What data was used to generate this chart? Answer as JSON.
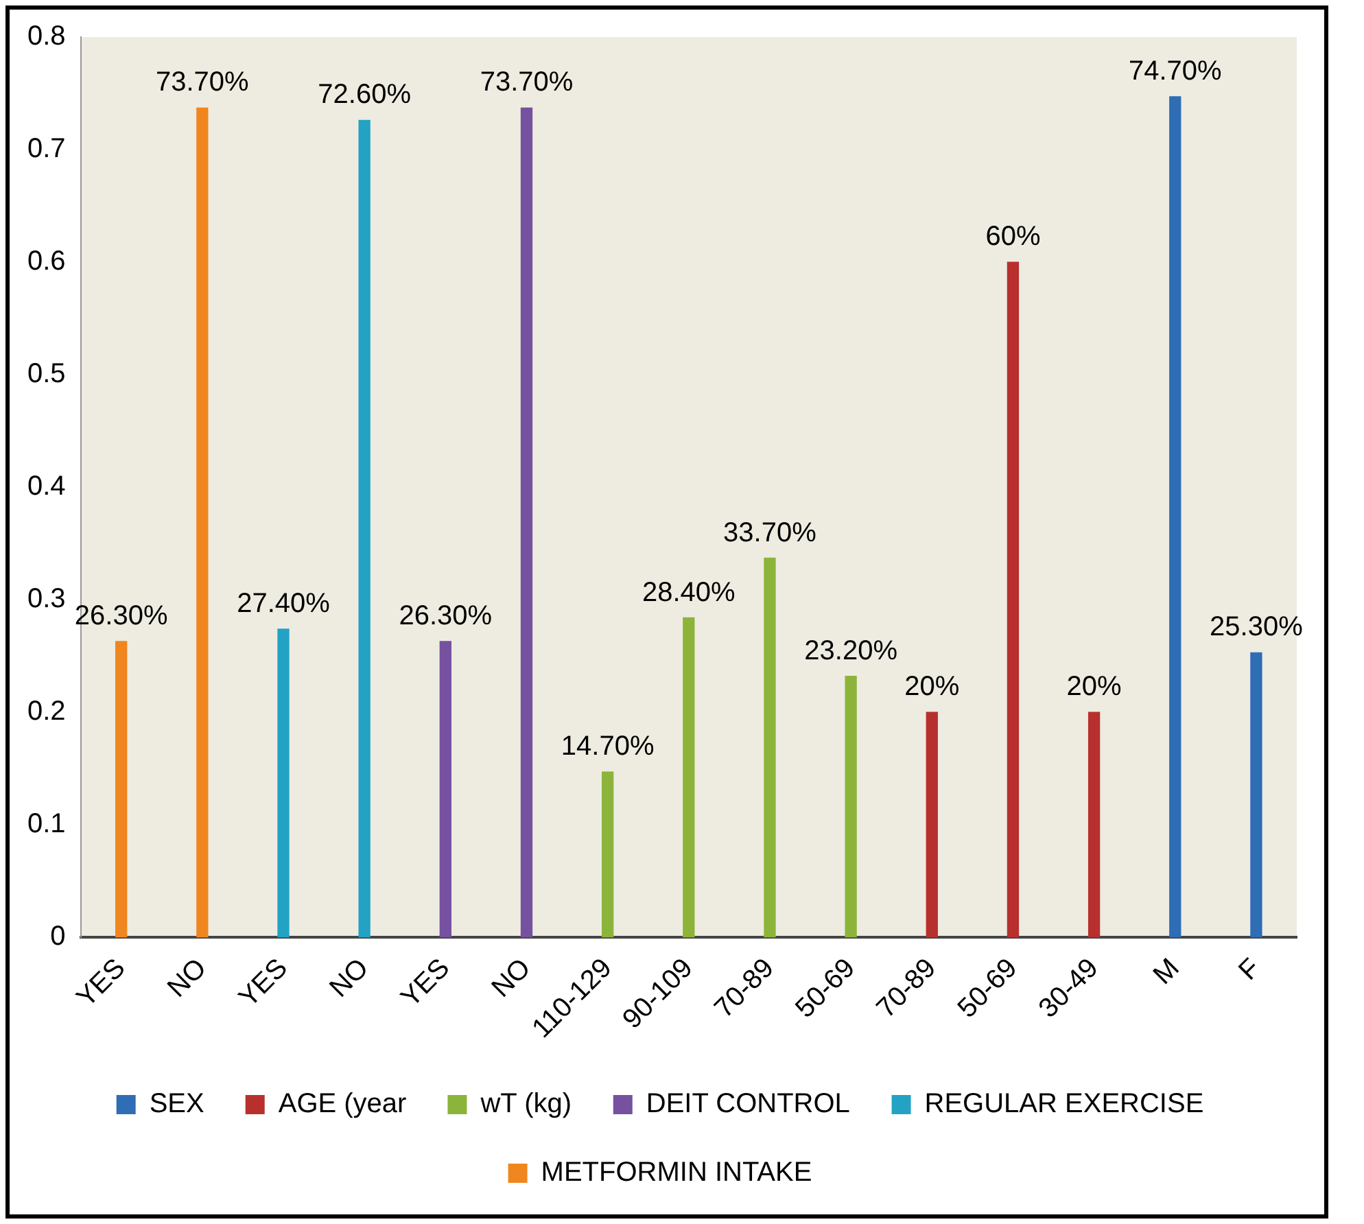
{
  "chart_data": {
    "type": "bar",
    "categories": [
      "YES",
      "NO",
      "YES",
      "NO",
      "YES",
      "NO",
      "110-129",
      "90-109",
      "70-89",
      "50-69",
      "70-89",
      "50-69",
      "30-49",
      "M",
      "F"
    ],
    "series": [
      {
        "name": "SEX",
        "color": "#2f6db5",
        "values": [
          null,
          null,
          null,
          null,
          null,
          null,
          null,
          null,
          null,
          null,
          null,
          null,
          null,
          0.747,
          0.253
        ],
        "value_labels": [
          null,
          null,
          null,
          null,
          null,
          null,
          null,
          null,
          null,
          null,
          null,
          null,
          null,
          "74.70%",
          "25.30%"
        ]
      },
      {
        "name": "AGE (year",
        "color": "#b8302e",
        "values": [
          null,
          null,
          null,
          null,
          null,
          null,
          null,
          null,
          null,
          null,
          0.2,
          0.6,
          0.2,
          null,
          null
        ],
        "value_labels": [
          null,
          null,
          null,
          null,
          null,
          null,
          null,
          null,
          null,
          null,
          "20%",
          "60%",
          "20%",
          null,
          null
        ]
      },
      {
        "name": "wT (kg)",
        "color": "#8cb43a",
        "values": [
          null,
          null,
          null,
          null,
          null,
          null,
          0.147,
          0.284,
          0.337,
          0.232,
          null,
          null,
          null,
          null,
          null
        ],
        "value_labels": [
          null,
          null,
          null,
          null,
          null,
          null,
          "14.70%",
          "28.40%",
          "33.70%",
          "23.20%",
          null,
          null,
          null,
          null,
          null
        ]
      },
      {
        "name": "DEIT CONTROL",
        "color": "#7551a0",
        "values": [
          null,
          null,
          null,
          null,
          0.263,
          0.737,
          null,
          null,
          null,
          null,
          null,
          null,
          null,
          null,
          null
        ],
        "value_labels": [
          null,
          null,
          null,
          null,
          "26.30%",
          "73.70%",
          null,
          null,
          null,
          null,
          null,
          null,
          null,
          null,
          null
        ]
      },
      {
        "name": "REGULAR EXERCISE",
        "color": "#23a2c4",
        "values": [
          null,
          null,
          0.274,
          0.726,
          null,
          null,
          null,
          null,
          null,
          null,
          null,
          null,
          null,
          null,
          null
        ],
        "value_labels": [
          null,
          null,
          "27.40%",
          "72.60%",
          null,
          null,
          null,
          null,
          null,
          null,
          null,
          null,
          null,
          null,
          null
        ]
      },
      {
        "name": "METFORMIN INTAKE",
        "color": "#f0861f",
        "values": [
          0.263,
          0.737,
          null,
          null,
          null,
          null,
          null,
          null,
          null,
          null,
          null,
          null,
          null,
          null,
          null
        ],
        "value_labels": [
          "26.30%",
          "73.70%",
          null,
          null,
          null,
          null,
          null,
          null,
          null,
          null,
          null,
          null,
          null,
          null,
          null
        ]
      }
    ],
    "ylim": [
      0,
      0.8
    ],
    "yticks": [
      0,
      0.1,
      0.2,
      0.3,
      0.4,
      0.5,
      0.6,
      0.7,
      0.8
    ],
    "grid": false,
    "legend": "bottom"
  }
}
